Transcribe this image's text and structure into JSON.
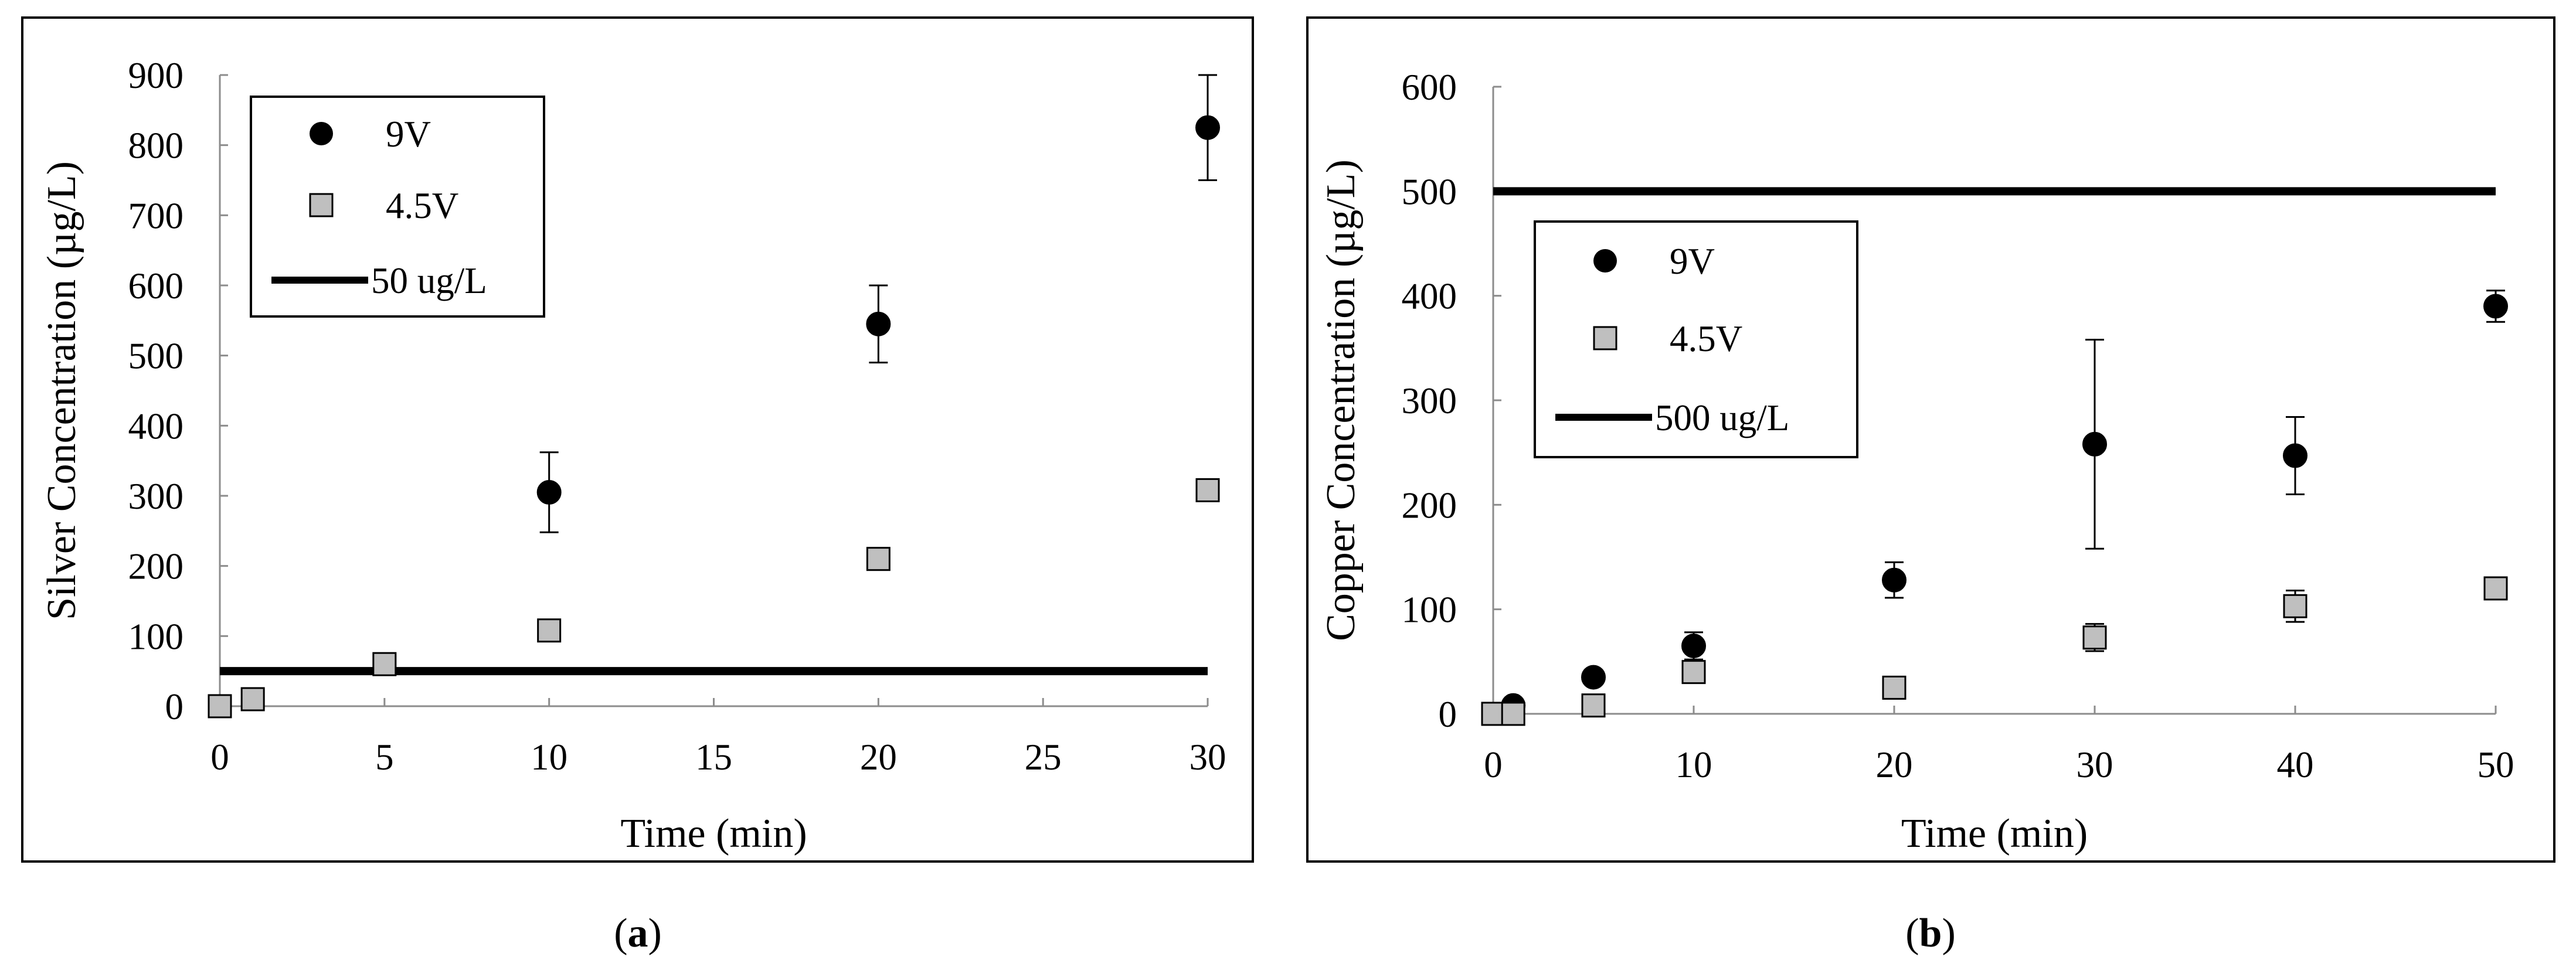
{
  "panel_labels": [
    {
      "open": "(",
      "letter": "a",
      "close": ")"
    },
    {
      "open": "(",
      "letter": "b",
      "close": ")"
    }
  ],
  "chart_data": [
    {
      "type": "scatter",
      "xlabel": "Time (min)",
      "ylabel": "Silver  Concentration (µg/L)",
      "xlim": [
        0,
        30
      ],
      "ylim": [
        0,
        900
      ],
      "xticks": [
        0,
        5,
        10,
        15,
        20,
        25,
        30
      ],
      "yticks": [
        0,
        100,
        200,
        300,
        400,
        500,
        600,
        700,
        800,
        900
      ],
      "grid": false,
      "legend_position": "top-left",
      "series": [
        {
          "name": "9V",
          "marker": "circle",
          "color": "#000000",
          "x": [
            10,
            20,
            30
          ],
          "y": [
            305,
            545,
            825
          ],
          "err": [
            57,
            55,
            75
          ]
        },
        {
          "name": "4.5V",
          "marker": "square",
          "color": "#bfbfbf",
          "x": [
            0,
            1,
            5,
            10,
            20,
            30
          ],
          "y": [
            0,
            10,
            60,
            108,
            210,
            308
          ],
          "err": [
            0,
            0,
            0,
            0,
            0,
            0
          ]
        }
      ],
      "reference_line": {
        "name": "50 ug/L",
        "y": 50
      }
    },
    {
      "type": "scatter",
      "xlabel": "Time (min)",
      "ylabel": "Copper Concentration (µg/L)",
      "xlim": [
        0,
        50
      ],
      "ylim": [
        0,
        600
      ],
      "xticks": [
        0,
        10,
        20,
        30,
        40,
        50
      ],
      "yticks": [
        0,
        100,
        200,
        300,
        400,
        500,
        600
      ],
      "grid": false,
      "legend_position": "center-left",
      "series": [
        {
          "name": "9V",
          "marker": "circle",
          "color": "#000000",
          "x": [
            1,
            5,
            10,
            20,
            30,
            40,
            50
          ],
          "y": [
            8,
            35,
            65,
            128,
            258,
            247,
            390
          ],
          "err": [
            0,
            0,
            13,
            17,
            100,
            37,
            15
          ]
        },
        {
          "name": "4.5V",
          "marker": "square",
          "color": "#bfbfbf",
          "x": [
            0,
            1,
            5,
            10,
            20,
            30,
            40,
            50
          ],
          "y": [
            0,
            0,
            8,
            40,
            25,
            73,
            103,
            120
          ],
          "err": [
            0,
            0,
            0,
            0,
            0,
            13,
            15,
            10
          ]
        }
      ],
      "reference_line": {
        "name": "500 ug/L",
        "y": 500
      }
    }
  ]
}
